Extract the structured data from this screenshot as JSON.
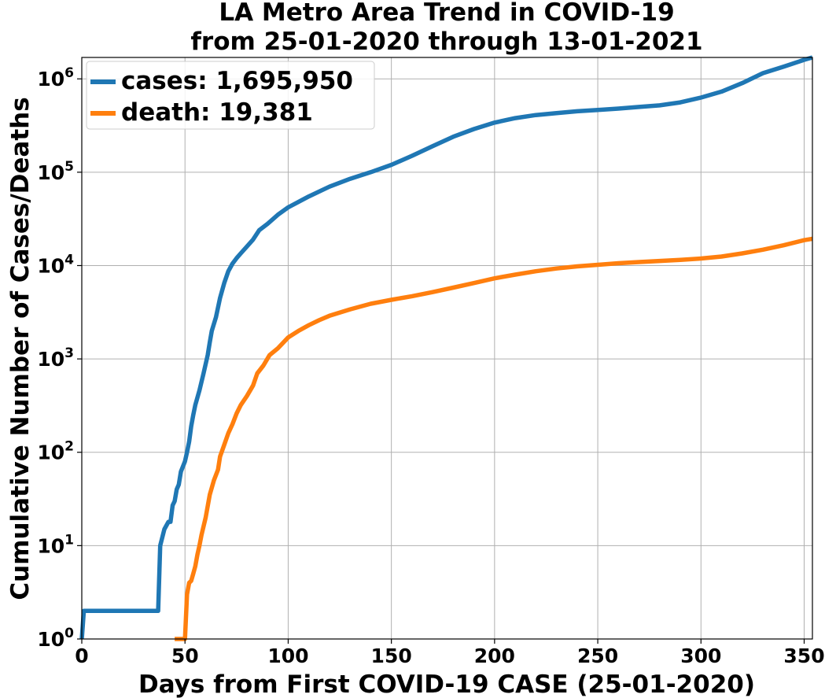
{
  "chart_data": {
    "type": "line",
    "title": [
      "LA Metro Area Trend in COVID-19",
      "from 25-01-2020 through 13-01-2021"
    ],
    "xlabel": "Days from First COVID-19 CASE (25-01-2020)",
    "ylabel": "Cumulative Number of Cases/Deaths",
    "yscale": "log",
    "xlim": [
      0,
      354
    ],
    "ylim": [
      1,
      1695950
    ],
    "xticks": [
      0,
      50,
      100,
      150,
      200,
      250,
      300,
      350
    ],
    "yticks": [
      {
        "base": "10",
        "exp": "0"
      },
      {
        "base": "10",
        "exp": "1"
      },
      {
        "base": "10",
        "exp": "2"
      },
      {
        "base": "10",
        "exp": "3"
      },
      {
        "base": "10",
        "exp": "4"
      },
      {
        "base": "10",
        "exp": "5"
      },
      {
        "base": "10",
        "exp": "6"
      }
    ],
    "grid": true,
    "legend_position": "top-left",
    "series": [
      {
        "name": "cases: 1,695,950",
        "color": "#1f77b4",
        "points": [
          [
            0,
            1
          ],
          [
            1,
            2
          ],
          [
            36,
            2
          ],
          [
            37,
            2
          ],
          [
            38,
            10
          ],
          [
            40,
            15
          ],
          [
            42,
            18
          ],
          [
            43,
            18
          ],
          [
            44,
            27
          ],
          [
            45,
            30
          ],
          [
            46,
            40
          ],
          [
            47,
            45
          ],
          [
            48,
            62
          ],
          [
            50,
            80
          ],
          [
            51,
            100
          ],
          [
            52,
            130
          ],
          [
            53,
            190
          ],
          [
            54,
            250
          ],
          [
            55,
            320
          ],
          [
            57,
            460
          ],
          [
            59,
            700
          ],
          [
            61,
            1100
          ],
          [
            62,
            1500
          ],
          [
            63,
            2000
          ],
          [
            65,
            2800
          ],
          [
            67,
            4500
          ],
          [
            69,
            6500
          ],
          [
            71,
            8700
          ],
          [
            73,
            10500
          ],
          [
            75,
            12000
          ],
          [
            77,
            13500
          ],
          [
            80,
            16000
          ],
          [
            83,
            19000
          ],
          [
            86,
            24000
          ],
          [
            90,
            28000
          ],
          [
            95,
            35000
          ],
          [
            100,
            42000
          ],
          [
            110,
            55000
          ],
          [
            120,
            70000
          ],
          [
            130,
            85000
          ],
          [
            140,
            100000
          ],
          [
            150,
            120000
          ],
          [
            160,
            150000
          ],
          [
            170,
            190000
          ],
          [
            180,
            240000
          ],
          [
            190,
            290000
          ],
          [
            200,
            340000
          ],
          [
            210,
            380000
          ],
          [
            220,
            410000
          ],
          [
            230,
            430000
          ],
          [
            240,
            450000
          ],
          [
            250,
            465000
          ],
          [
            260,
            480000
          ],
          [
            270,
            500000
          ],
          [
            280,
            520000
          ],
          [
            290,
            560000
          ],
          [
            300,
            630000
          ],
          [
            310,
            730000
          ],
          [
            320,
            900000
          ],
          [
            330,
            1150000
          ],
          [
            340,
            1350000
          ],
          [
            350,
            1600000
          ],
          [
            354,
            1695950
          ]
        ]
      },
      {
        "name": "death: 19,381",
        "color": "#ff7f0e",
        "points": [
          [
            45,
            1
          ],
          [
            50,
            1
          ],
          [
            51,
            3
          ],
          [
            52,
            4
          ],
          [
            53,
            4.2
          ],
          [
            54,
            5
          ],
          [
            55,
            6
          ],
          [
            56,
            8
          ],
          [
            57,
            10
          ],
          [
            58,
            13
          ],
          [
            60,
            20
          ],
          [
            62,
            35
          ],
          [
            64,
            50
          ],
          [
            66,
            65
          ],
          [
            67,
            90
          ],
          [
            69,
            120
          ],
          [
            71,
            160
          ],
          [
            73,
            200
          ],
          [
            75,
            260
          ],
          [
            77,
            320
          ],
          [
            80,
            400
          ],
          [
            83,
            520
          ],
          [
            85,
            700
          ],
          [
            88,
            850
          ],
          [
            91,
            1100
          ],
          [
            95,
            1300
          ],
          [
            100,
            1700
          ],
          [
            105,
            2000
          ],
          [
            110,
            2300
          ],
          [
            115,
            2600
          ],
          [
            120,
            2900
          ],
          [
            130,
            3400
          ],
          [
            140,
            3900
          ],
          [
            150,
            4300
          ],
          [
            160,
            4700
          ],
          [
            170,
            5200
          ],
          [
            180,
            5800
          ],
          [
            190,
            6500
          ],
          [
            200,
            7300
          ],
          [
            210,
            8000
          ],
          [
            220,
            8700
          ],
          [
            230,
            9300
          ],
          [
            240,
            9800
          ],
          [
            250,
            10200
          ],
          [
            260,
            10600
          ],
          [
            270,
            10900
          ],
          [
            280,
            11200
          ],
          [
            290,
            11500
          ],
          [
            300,
            11900
          ],
          [
            310,
            12500
          ],
          [
            320,
            13500
          ],
          [
            330,
            14800
          ],
          [
            340,
            16500
          ],
          [
            350,
            18700
          ],
          [
            354,
            19381
          ]
        ]
      }
    ]
  }
}
